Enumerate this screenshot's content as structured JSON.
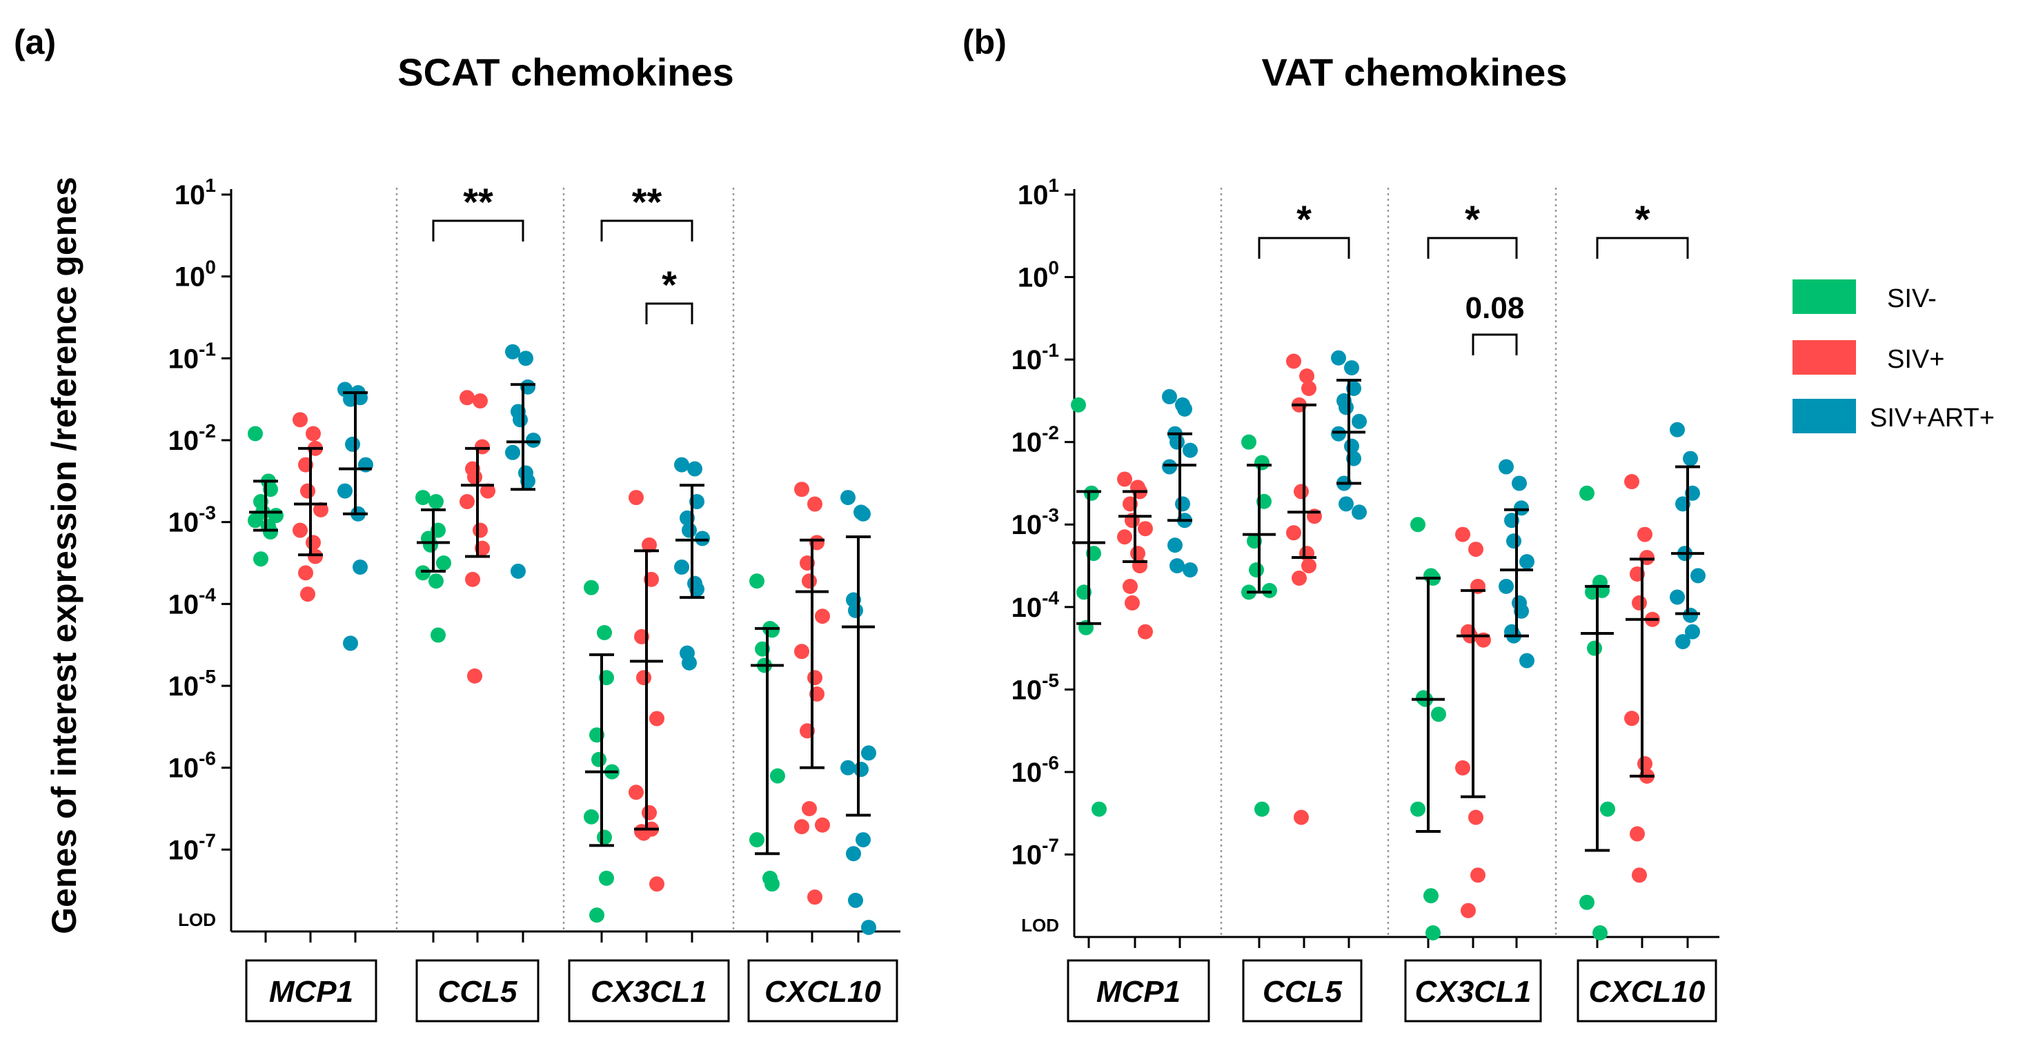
{
  "figure": {
    "ylabel": "Genes of interest expression /reference genes",
    "legend": {
      "position": "right",
      "items": [
        {
          "label": "SIV-",
          "color": "#00c070"
        },
        {
          "label": "SIV+",
          "color": "#ff4b4b"
        },
        {
          "label": "SIV+ART+",
          "color": "#0094b4"
        }
      ]
    }
  },
  "chart_data": [
    {
      "type": "scatter",
      "panel": "(a)",
      "title": "SCAT chemokines",
      "yscale": "log10",
      "ylim_exp": [
        -8,
        1
      ],
      "ytick_exponents": [
        1,
        0,
        -1,
        -2,
        -3,
        -4,
        -5,
        -6,
        -7
      ],
      "yticks": [
        {
          "base": "10",
          "exp": "1"
        },
        {
          "base": "10",
          "exp": "0"
        },
        {
          "base": "10",
          "exp": "-1"
        },
        {
          "base": "10",
          "exp": "-2"
        },
        {
          "base": "10",
          "exp": "-3"
        },
        {
          "base": "10",
          "exp": "-4"
        },
        {
          "base": "10",
          "exp": "-5"
        },
        {
          "base": "10",
          "exp": "-6"
        },
        {
          "base": "10",
          "exp": "-7"
        }
      ],
      "lod_label": "LOD",
      "genes": [
        {
          "name": "MCP1",
          "groups": [
            {
              "points": [
                -1.92,
                -2.5,
                -2.6,
                -2.75,
                -2.88,
                -2.92,
                -2.98,
                -3.05,
                -3.12,
                -3.45
              ],
              "median": -2.88,
              "q1": -3.1,
              "q3": -2.5
            },
            {
              "points": [
                -1.75,
                -1.92,
                -2.1,
                -2.3,
                -2.62,
                -2.85,
                -3.1,
                -3.25,
                -3.42,
                -3.62,
                -3.88
              ],
              "median": -2.78,
              "q1": -3.4,
              "q3": -2.1
            },
            {
              "points": [
                -1.38,
                -1.42,
                -1.48,
                -1.5,
                -2.05,
                -2.3,
                -2.62,
                -2.9,
                -3.55,
                -4.48
              ],
              "median": -2.35,
              "q1": -2.9,
              "q3": -1.42
            }
          ]
        },
        {
          "name": "CCL5",
          "groups": [
            {
              "points": [
                -2.7,
                -2.75,
                -3.1,
                -3.2,
                -3.28,
                -3.5,
                -3.62,
                -3.72,
                -4.38
              ],
              "median": -3.25,
              "q1": -3.6,
              "q3": -2.85
            },
            {
              "points": [
                -1.48,
                -1.52,
                -2.08,
                -2.35,
                -2.45,
                -2.62,
                -2.75,
                -3.1,
                -3.32,
                -3.7,
                -4.88
              ],
              "median": -2.55,
              "q1": -3.42,
              "q3": -2.1
            },
            {
              "points": [
                -0.92,
                -1.0,
                -1.35,
                -1.65,
                -1.75,
                -2.0,
                -2.15,
                -2.4,
                -2.5,
                -3.6
              ],
              "median": -2.02,
              "q1": -2.6,
              "q3": -1.32
            }
          ]
        },
        {
          "name": "CX3CL1",
          "groups": [
            {
              "points": [
                -3.8,
                -4.35,
                -4.9,
                -5.6,
                -5.9,
                -6.05,
                -6.6,
                -6.85,
                -7.35,
                -7.8
              ],
              "median": -6.05,
              "q1": -6.95,
              "q3": -4.62
            },
            {
              "points": [
                -2.7,
                -3.28,
                -3.7,
                -4.4,
                -4.9,
                -5.4,
                -6.3,
                -6.55,
                -6.75,
                -6.78,
                -6.8,
                -7.42
              ],
              "median": -4.7,
              "q1": -6.75,
              "q3": -3.35
            },
            {
              "points": [
                -2.3,
                -2.35,
                -2.75,
                -2.95,
                -3.1,
                -3.2,
                -3.55,
                -3.75,
                -3.82,
                -4.6,
                -4.72
              ],
              "median": -3.22,
              "q1": -3.92,
              "q3": -2.55
            }
          ]
        },
        {
          "name": "CXCL10",
          "groups": [
            {
              "points": [
                -3.72,
                -4.3,
                -4.32,
                -4.55,
                -4.75,
                -6.1,
                -6.88,
                -7.35,
                -7.42
              ],
              "median": -4.75,
              "q1": -7.05,
              "q3": -4.3
            },
            {
              "points": [
                -2.6,
                -2.78,
                -3.25,
                -3.5,
                -3.72,
                -4.15,
                -4.58,
                -4.9,
                -5.1,
                -5.55,
                -6.5,
                -6.7,
                -6.72,
                -7.58
              ],
              "median": -3.85,
              "q1": -6.0,
              "q3": -3.22
            },
            {
              "points": [
                -2.7,
                -2.88,
                -2.9,
                -3.95,
                -4.08,
                -5.82,
                -6.0,
                -6.02,
                -6.88,
                -7.05,
                -7.62,
                -7.95
              ],
              "median": -4.28,
              "q1": -6.58,
              "q3": -3.18
            }
          ]
        }
      ],
      "significance": [
        {
          "gene": "CCL5",
          "from": 0,
          "to": 2,
          "label": "**"
        },
        {
          "gene": "CX3CL1",
          "from": 0,
          "to": 2,
          "label": "**"
        },
        {
          "gene": "CX3CL1",
          "from": 1,
          "to": 2,
          "label": "*"
        }
      ]
    },
    {
      "type": "scatter",
      "panel": "(b)",
      "title": "VAT chemokines",
      "yscale": "log10",
      "ylim_exp": [
        -8,
        1
      ],
      "ytick_exponents": [
        1,
        0,
        -1,
        -2,
        -3,
        -4,
        -5,
        -6,
        -7
      ],
      "yticks": [
        {
          "base": "10",
          "exp": "1"
        },
        {
          "base": "10",
          "exp": "0"
        },
        {
          "base": "10",
          "exp": "-1"
        },
        {
          "base": "10",
          "exp": "-2"
        },
        {
          "base": "10",
          "exp": "-3"
        },
        {
          "base": "10",
          "exp": "-4"
        },
        {
          "base": "10",
          "exp": "-5"
        },
        {
          "base": "10",
          "exp": "-6"
        },
        {
          "base": "10",
          "exp": "-7"
        }
      ],
      "lod_label": "LOD",
      "genes": [
        {
          "name": "MCP1",
          "groups": [
            {
              "points": [
                -1.55,
                -2.62,
                -3.35,
                -3.82,
                -4.25,
                -6.45
              ],
              "median": -3.22,
              "q1": -4.2,
              "q3": -2.6
            },
            {
              "points": [
                -2.45,
                -2.55,
                -2.6,
                -2.75,
                -2.95,
                -3.05,
                -3.15,
                -3.35,
                -3.5,
                -3.75,
                -3.95,
                -4.3
              ],
              "median": -2.9,
              "q1": -3.45,
              "q3": -2.6
            },
            {
              "points": [
                -1.45,
                -1.55,
                -1.6,
                -1.9,
                -2.0,
                -2.1,
                -2.3,
                -2.75,
                -2.95,
                -3.25,
                -3.5,
                -3.55
              ],
              "median": -2.28,
              "q1": -2.95,
              "q3": -1.9
            }
          ]
        },
        {
          "name": "CCL5",
          "groups": [
            {
              "points": [
                -2.0,
                -2.25,
                -2.72,
                -3.2,
                -3.55,
                -3.8,
                -3.82,
                -6.45
              ],
              "median": -3.12,
              "q1": -3.82,
              "q3": -2.28
            },
            {
              "points": [
                -1.02,
                -1.2,
                -1.35,
                -1.55,
                -2.6,
                -2.9,
                -3.1,
                -3.35,
                -3.5,
                -3.65,
                -6.55
              ],
              "median": -2.85,
              "q1": -3.4,
              "q3": -1.55
            },
            {
              "points": [
                -0.98,
                -1.1,
                -1.35,
                -1.5,
                -1.58,
                -1.75,
                -1.9,
                -2.05,
                -2.2,
                -2.5,
                -2.75,
                -2.85
              ],
              "median": -1.88,
              "q1": -2.5,
              "q3": -1.25
            }
          ]
        },
        {
          "name": "CX3CL1",
          "groups": [
            {
              "points": [
                -3.0,
                -3.62,
                -3.65,
                -5.1,
                -5.12,
                -5.3,
                -6.45,
                -7.5,
                -7.95
              ],
              "median": -5.12,
              "q1": -6.72,
              "q3": -3.65
            },
            {
              "points": [
                -3.12,
                -3.3,
                -3.75,
                -4.3,
                -4.35,
                -4.4,
                -5.95,
                -6.55,
                -7.25,
                -7.68
              ],
              "median": -4.35,
              "q1": -6.3,
              "q3": -3.8
            },
            {
              "points": [
                -2.3,
                -2.5,
                -2.8,
                -2.95,
                -3.2,
                -3.45,
                -3.75,
                -3.95,
                -4.05,
                -4.3,
                -4.35,
                -4.65
              ],
              "median": -3.55,
              "q1": -4.35,
              "q3": -2.82
            }
          ]
        },
        {
          "name": "CXCL10",
          "groups": [
            {
              "points": [
                -2.62,
                -3.7,
                -3.8,
                -3.82,
                -4.5,
                -6.45,
                -7.58,
                -7.95
              ],
              "median": -4.32,
              "q1": -6.95,
              "q3": -3.75
            },
            {
              "points": [
                -2.48,
                -3.12,
                -3.4,
                -3.6,
                -3.95,
                -4.15,
                -5.35,
                -5.9,
                -6.05,
                -6.75,
                -7.25
              ],
              "median": -4.15,
              "q1": -6.05,
              "q3": -3.42
            },
            {
              "points": [
                -1.85,
                -2.2,
                -2.62,
                -2.75,
                -3.35,
                -3.62,
                -3.88,
                -4.1,
                -4.3,
                -4.42
              ],
              "median": -3.35,
              "q1": -4.08,
              "q3": -2.3
            }
          ]
        }
      ],
      "significance": [
        {
          "gene": "CCL5",
          "from": 0,
          "to": 2,
          "label": "*"
        },
        {
          "gene": "CX3CL1",
          "from": 0,
          "to": 2,
          "label": "*"
        },
        {
          "gene": "CX3CL1",
          "from": 1,
          "to": 2,
          "label": "0.08"
        },
        {
          "gene": "CXCL10",
          "from": 0,
          "to": 2,
          "label": "*"
        }
      ]
    }
  ]
}
